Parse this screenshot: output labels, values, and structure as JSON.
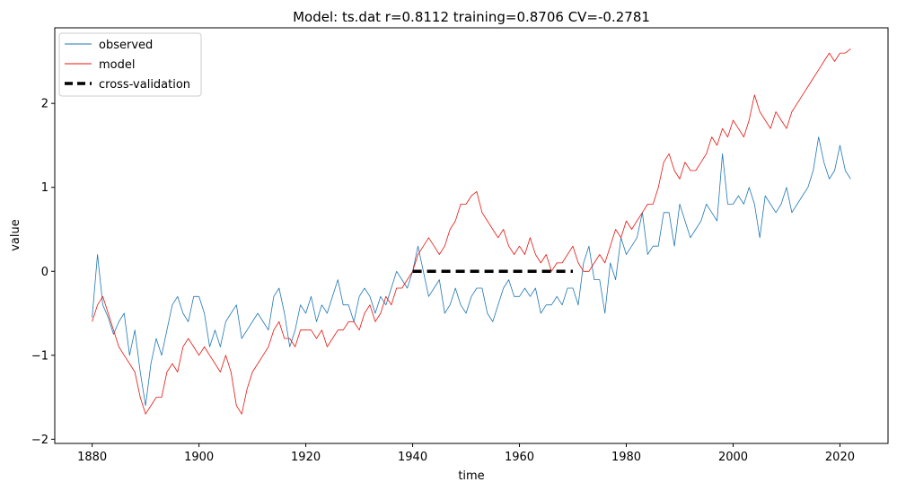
{
  "chart_data": {
    "type": "line",
    "title": "Model: ts.dat  r=0.8112  training=0.8706  CV=-0.2781",
    "xlabel": "time",
    "ylabel": "value",
    "xlim": [
      1873,
      2029
    ],
    "ylim": [
      -2.05,
      2.9
    ],
    "xticks": [
      1880,
      1900,
      1920,
      1940,
      1960,
      1980,
      2000,
      2020
    ],
    "xtick_labels": [
      "1880",
      "1900",
      "1920",
      "1940",
      "1960",
      "1980",
      "2000",
      "2020"
    ],
    "yticks": [
      -2,
      -1,
      0,
      1,
      2
    ],
    "ytick_labels": [
      "−2",
      "−1",
      "0",
      "1",
      "2"
    ],
    "legend_location": "top-left",
    "colors": {
      "observed": "#1f77b4",
      "model": "#e8140e",
      "cv": "#000000"
    },
    "series": [
      {
        "name": "observed",
        "label": "observed",
        "style": "thin-solid",
        "x": [
          1880,
          1881,
          1882,
          1883,
          1884,
          1885,
          1886,
          1887,
          1888,
          1889,
          1890,
          1891,
          1892,
          1893,
          1894,
          1895,
          1896,
          1897,
          1898,
          1899,
          1900,
          1901,
          1902,
          1903,
          1904,
          1905,
          1906,
          1907,
          1908,
          1909,
          1910,
          1911,
          1912,
          1913,
          1914,
          1915,
          1916,
          1917,
          1918,
          1919,
          1920,
          1921,
          1922,
          1923,
          1924,
          1925,
          1926,
          1927,
          1928,
          1929,
          1930,
          1931,
          1932,
          1933,
          1934,
          1935,
          1936,
          1937,
          1938,
          1939,
          1940,
          1941,
          1942,
          1943,
          1944,
          1945,
          1946,
          1947,
          1948,
          1949,
          1950,
          1951,
          1952,
          1953,
          1954,
          1955,
          1956,
          1957,
          1958,
          1959,
          1960,
          1961,
          1962,
          1963,
          1964,
          1965,
          1966,
          1967,
          1968,
          1969,
          1970,
          1971,
          1972,
          1973,
          1974,
          1975,
          1976,
          1977,
          1978,
          1979,
          1980,
          1981,
          1982,
          1983,
          1984,
          1985,
          1986,
          1987,
          1988,
          1989,
          1990,
          1991,
          1992,
          1993,
          1994,
          1995,
          1996,
          1997,
          1998,
          1999,
          2000,
          2001,
          2002,
          2003,
          2004,
          2005,
          2006,
          2007,
          2008,
          2009,
          2010,
          2011,
          2012,
          2013,
          2014,
          2015,
          2016,
          2017,
          2018,
          2019,
          2020,
          2021,
          2022
        ],
        "values": [
          -0.55,
          0.2,
          -0.4,
          -0.55,
          -0.75,
          -0.6,
          -0.5,
          -1.0,
          -0.7,
          -1.2,
          -1.6,
          -1.1,
          -0.8,
          -1.0,
          -0.7,
          -0.4,
          -0.3,
          -0.5,
          -0.6,
          -0.3,
          -0.3,
          -0.5,
          -0.9,
          -0.7,
          -0.9,
          -0.6,
          -0.5,
          -0.4,
          -0.8,
          -0.7,
          -0.6,
          -0.5,
          -0.6,
          -0.7,
          -0.3,
          -0.2,
          -0.5,
          -0.9,
          -0.7,
          -0.4,
          -0.5,
          -0.3,
          -0.6,
          -0.4,
          -0.5,
          -0.3,
          -0.1,
          -0.4,
          -0.4,
          -0.6,
          -0.3,
          -0.2,
          -0.3,
          -0.5,
          -0.3,
          -0.4,
          -0.2,
          0.0,
          -0.1,
          -0.2,
          0.0,
          0.3,
          0.0,
          -0.3,
          -0.2,
          -0.1,
          -0.5,
          -0.4,
          -0.2,
          -0.4,
          -0.5,
          -0.3,
          -0.2,
          -0.2,
          -0.5,
          -0.6,
          -0.4,
          -0.2,
          -0.1,
          -0.3,
          -0.3,
          -0.2,
          -0.3,
          -0.2,
          -0.5,
          -0.4,
          -0.4,
          -0.3,
          -0.4,
          -0.2,
          -0.2,
          -0.4,
          0.1,
          0.3,
          -0.1,
          -0.1,
          -0.5,
          0.1,
          -0.1,
          0.4,
          0.2,
          0.3,
          0.4,
          0.7,
          0.2,
          0.3,
          0.3,
          0.7,
          0.7,
          0.3,
          0.8,
          0.6,
          0.4,
          0.5,
          0.6,
          0.8,
          0.7,
          0.6,
          1.4,
          0.8,
          0.8,
          0.9,
          0.8,
          1.0,
          0.8,
          0.4,
          0.9,
          0.8,
          0.7,
          0.8,
          1.0,
          0.7,
          0.8,
          0.9,
          1.0,
          1.2,
          1.6,
          1.3,
          1.1,
          1.2,
          1.5,
          1.2,
          1.1
        ]
      },
      {
        "name": "model",
        "label": "model",
        "style": "thin-solid",
        "x": [
          1880,
          1881,
          1882,
          1883,
          1884,
          1885,
          1886,
          1887,
          1888,
          1889,
          1890,
          1891,
          1892,
          1893,
          1894,
          1895,
          1896,
          1897,
          1898,
          1899,
          1900,
          1901,
          1902,
          1903,
          1904,
          1905,
          1906,
          1907,
          1908,
          1909,
          1910,
          1911,
          1912,
          1913,
          1914,
          1915,
          1916,
          1917,
          1918,
          1919,
          1920,
          1921,
          1922,
          1923,
          1924,
          1925,
          1926,
          1927,
          1928,
          1929,
          1930,
          1931,
          1932,
          1933,
          1934,
          1935,
          1936,
          1937,
          1938,
          1939,
          1940,
          1941,
          1942,
          1943,
          1944,
          1945,
          1946,
          1947,
          1948,
          1949,
          1950,
          1951,
          1952,
          1953,
          1954,
          1955,
          1956,
          1957,
          1958,
          1959,
          1960,
          1961,
          1962,
          1963,
          1964,
          1965,
          1966,
          1967,
          1968,
          1969,
          1970,
          1971,
          1972,
          1973,
          1974,
          1975,
          1976,
          1977,
          1978,
          1979,
          1980,
          1981,
          1982,
          1983,
          1984,
          1985,
          1986,
          1987,
          1988,
          1989,
          1990,
          1991,
          1992,
          1993,
          1994,
          1995,
          1996,
          1997,
          1998,
          1999,
          2000,
          2001,
          2002,
          2003,
          2004,
          2005,
          2006,
          2007,
          2008,
          2009,
          2010,
          2011,
          2012,
          2013,
          2014,
          2015,
          2016,
          2017,
          2018,
          2019,
          2020,
          2021,
          2022
        ],
        "values": [
          -0.6,
          -0.4,
          -0.3,
          -0.5,
          -0.7,
          -0.9,
          -1.0,
          -1.1,
          -1.2,
          -1.5,
          -1.7,
          -1.6,
          -1.5,
          -1.5,
          -1.2,
          -1.1,
          -1.2,
          -0.9,
          -0.8,
          -0.9,
          -1.0,
          -0.9,
          -1.0,
          -1.1,
          -1.2,
          -1.0,
          -1.2,
          -1.6,
          -1.7,
          -1.4,
          -1.2,
          -1.1,
          -1.0,
          -0.9,
          -0.7,
          -0.6,
          -0.8,
          -0.8,
          -0.9,
          -0.7,
          -0.7,
          -0.7,
          -0.8,
          -0.7,
          -0.9,
          -0.8,
          -0.7,
          -0.7,
          -0.6,
          -0.6,
          -0.7,
          -0.5,
          -0.4,
          -0.6,
          -0.5,
          -0.3,
          -0.4,
          -0.2,
          -0.2,
          -0.1,
          0.0,
          0.2,
          0.3,
          0.4,
          0.3,
          0.2,
          0.3,
          0.5,
          0.6,
          0.8,
          0.8,
          0.9,
          0.95,
          0.7,
          0.6,
          0.5,
          0.4,
          0.5,
          0.3,
          0.2,
          0.3,
          0.2,
          0.4,
          0.2,
          0.1,
          0.2,
          0.0,
          0.1,
          0.1,
          0.2,
          0.3,
          0.1,
          0.0,
          0.0,
          0.1,
          0.2,
          0.1,
          0.3,
          0.5,
          0.4,
          0.6,
          0.5,
          0.6,
          0.7,
          0.8,
          0.8,
          1.0,
          1.3,
          1.4,
          1.2,
          1.1,
          1.3,
          1.2,
          1.2,
          1.3,
          1.4,
          1.6,
          1.5,
          1.7,
          1.6,
          1.8,
          1.7,
          1.6,
          1.8,
          2.1,
          1.9,
          1.8,
          1.7,
          1.9,
          1.8,
          1.7,
          1.9,
          2.0,
          2.1,
          2.2,
          2.3,
          2.4,
          2.5,
          2.6,
          2.5,
          2.6,
          2.6,
          2.65
        ]
      },
      {
        "name": "cross-validation",
        "label": "cross-validation",
        "style": "thick-dashed",
        "x": [
          1940,
          1970
        ],
        "values": [
          0,
          0
        ]
      }
    ]
  }
}
